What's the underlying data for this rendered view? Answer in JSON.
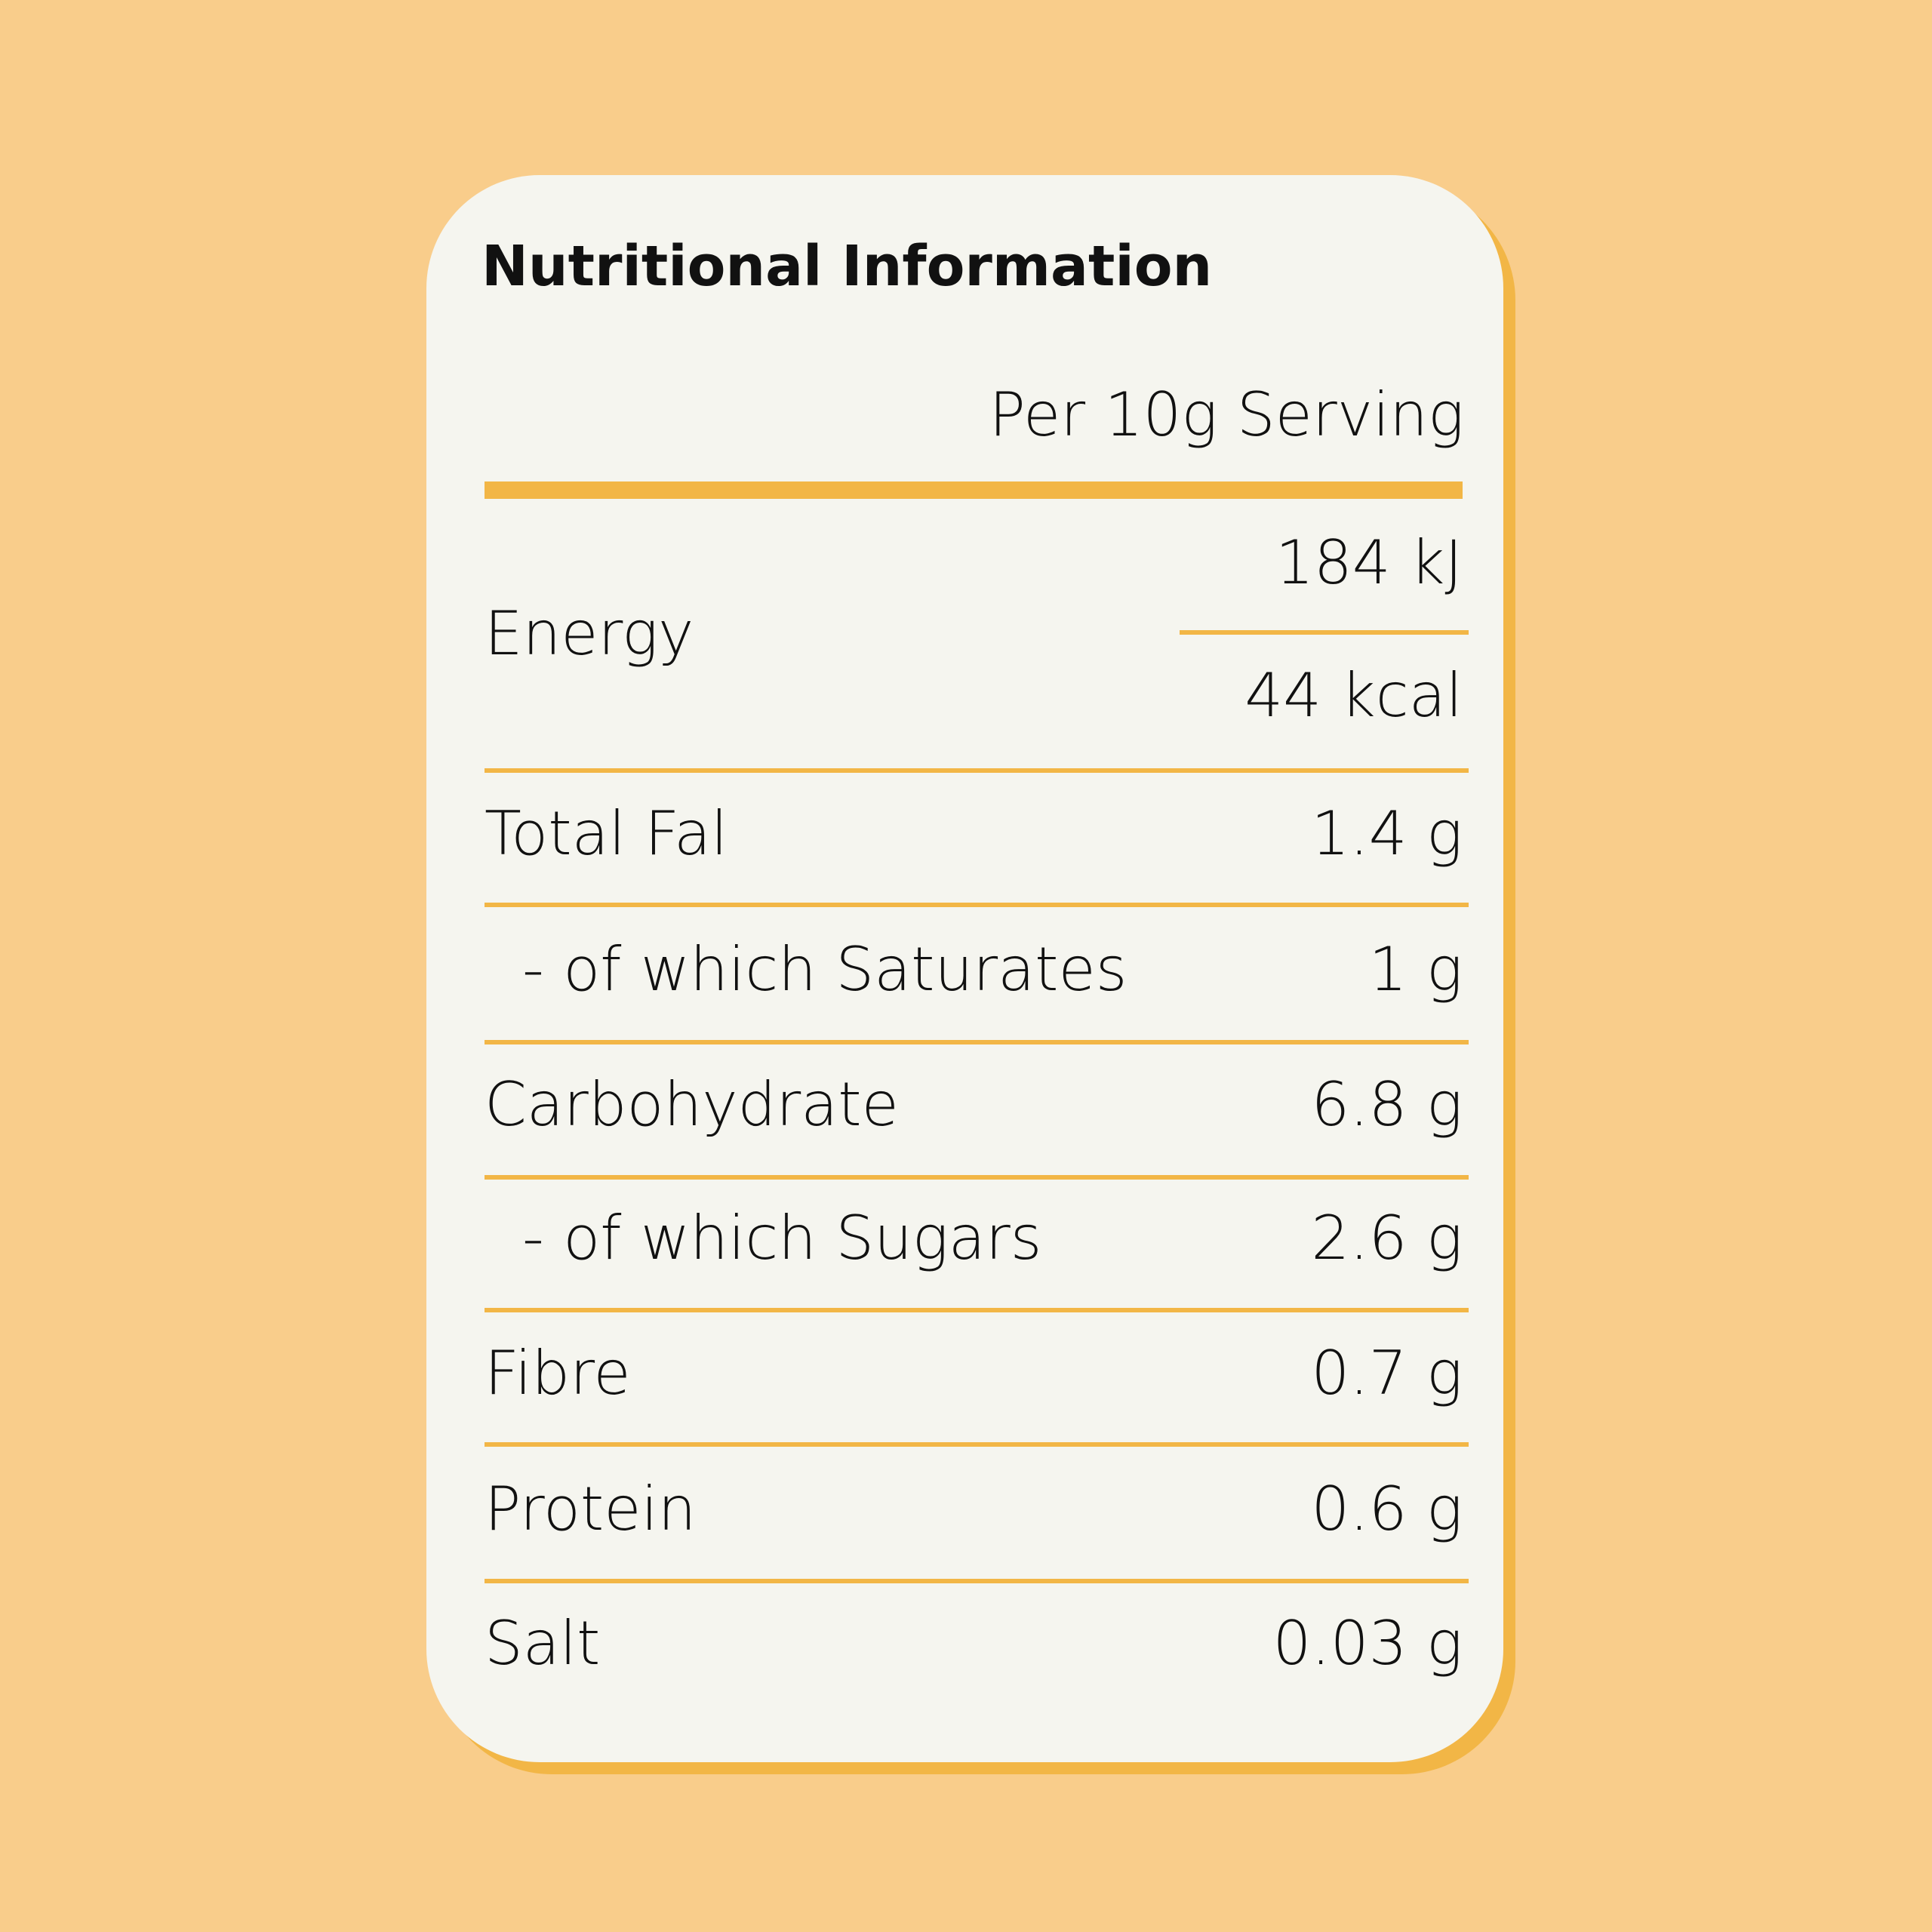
{
  "title": "Nutritional Information",
  "serving": "Per 10g Serving",
  "colors": {
    "background": "#F9CD8B",
    "card": "#F5F5EF",
    "accent": "#F2B646",
    "text": "#111111"
  },
  "energy": {
    "label": "Energy",
    "kj": "184 kJ",
    "kcal": "44 kcal"
  },
  "rows": [
    {
      "label": "Total Fal",
      "value": "1.4 g"
    },
    {
      "label": "- of which Saturates",
      "value": "1 g"
    },
    {
      "label": "Carbohydrate",
      "value": "6.8 g"
    },
    {
      "label": "- of which Sugars",
      "value": "2.6 g"
    },
    {
      "label": "Fibre",
      "value": "0.7 g"
    },
    {
      "label": "Protein",
      "value": "0.6 g"
    },
    {
      "label": "Salt",
      "value": "0.03 g"
    }
  ]
}
